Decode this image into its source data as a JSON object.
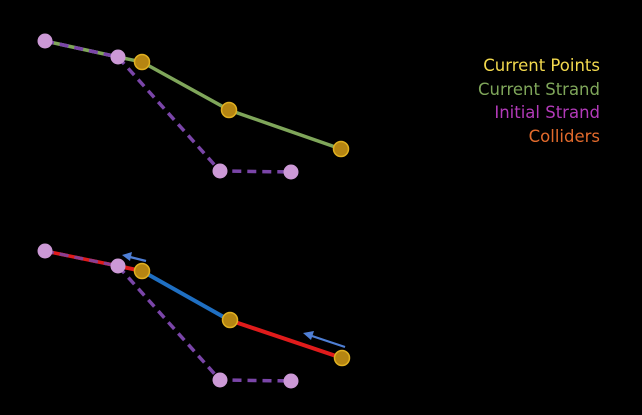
{
  "legend": {
    "current_points": "Current Points",
    "current_strand": "Current Strand",
    "initial_strand": "Initial Strand",
    "colliders": "Colliders"
  },
  "colors": {
    "current_points_text": "#f2d94e",
    "current_strand": "#7fa65a",
    "initial_strand_text": "#b23ab8",
    "initial_strand_line": "#7a45a8",
    "initial_point": "#cc99d6",
    "colliders_text": "#e26a2c",
    "collider_line": "#e01b1b",
    "blue_segment": "#1f6fc2",
    "current_point_fill": "#b58512",
    "current_point_stroke": "#e0b020",
    "arrow": "#4f7fd6"
  }
}
